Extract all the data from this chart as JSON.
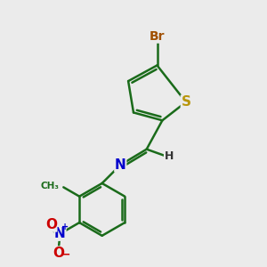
{
  "bg_color": "#ebebeb",
  "bond_color": "#1a6b1a",
  "bond_width": 1.8,
  "atoms": {
    "S": {
      "color": "#b8960c",
      "size": 11
    },
    "Br": {
      "color": "#a05000",
      "size": 11
    },
    "N": {
      "color": "#0000cc",
      "size": 11
    },
    "O": {
      "color": "#cc0000",
      "size": 11
    },
    "H": {
      "color": "#333333",
      "size": 9
    }
  },
  "figsize": [
    3.0,
    3.0
  ],
  "dpi": 100,
  "xlim": [
    0,
    10
  ],
  "ylim": [
    0,
    10
  ]
}
